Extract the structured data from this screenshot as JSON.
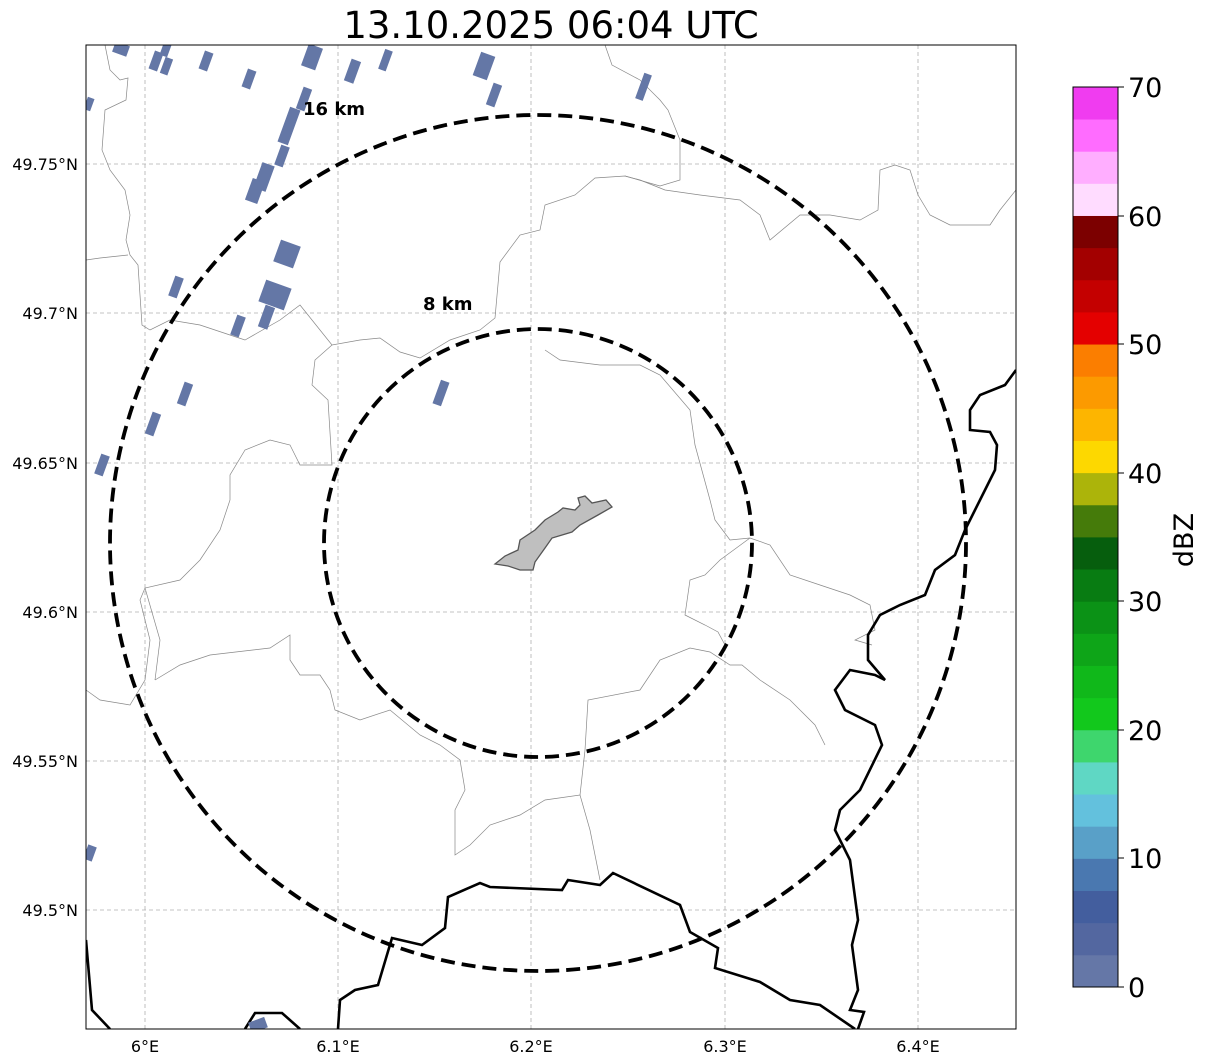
{
  "title": "13.10.2025 06:04 UTC",
  "map": {
    "lat_ticks": [
      "49.75°N",
      "49.7°N",
      "49.65°N",
      "49.6°N",
      "49.55°N",
      "49.5°N"
    ],
    "lon_ticks": [
      "6°E",
      "6.1°E",
      "6.2°E",
      "6.3°E",
      "6.4°E"
    ],
    "range_rings": [
      {
        "label": "8 km"
      },
      {
        "label": "16 km"
      }
    ],
    "grid": true,
    "colors": {
      "ring": "#000000",
      "border": "#000000",
      "admin_lines": "#888888",
      "city_fill": "#bfbfbf",
      "city_stroke": "#555555",
      "echo": "#6477a6",
      "gridline": "#b0b0b0"
    }
  },
  "colorbar": {
    "label": "dBZ",
    "tick_labels": [
      "0",
      "10",
      "20",
      "30",
      "40",
      "50",
      "60",
      "70"
    ],
    "min": 0,
    "max": 70,
    "step": 2.5,
    "colors": [
      "#6577a7",
      "#5367a0",
      "#435e9e",
      "#4a78b0",
      "#59a0c8",
      "#63c1dd",
      "#5fd7c4",
      "#3ed66d",
      "#12c81c",
      "#10b81a",
      "#0ea518",
      "#0b9216",
      "#087c12",
      "#065e0d",
      "#457b0a",
      "#acb40a",
      "#fdd800",
      "#fdb500",
      "#fc9a00",
      "#fb7e00",
      "#e40000",
      "#c40000",
      "#a30000",
      "#7c0000",
      "#ffdcff",
      "#ffaeff",
      "#ff6cff",
      "#f03cf0"
    ]
  }
}
